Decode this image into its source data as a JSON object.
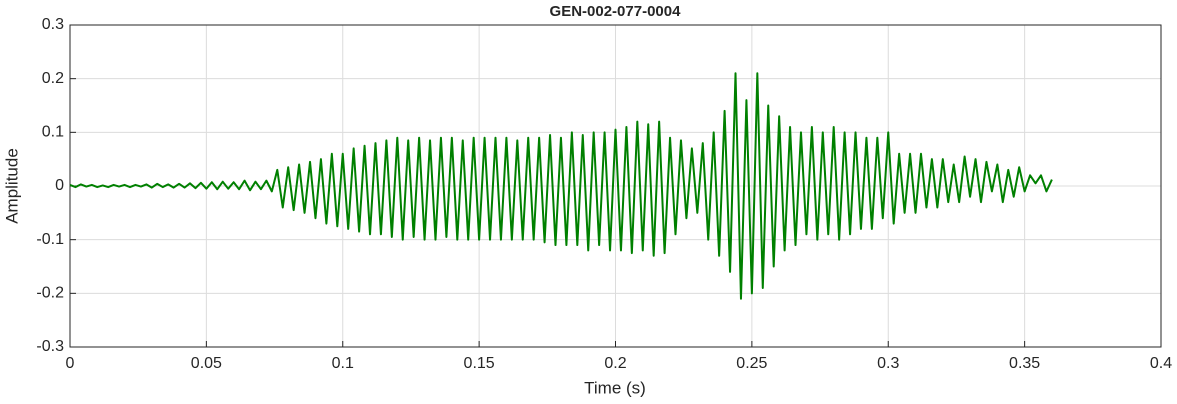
{
  "chart_data": {
    "type": "line",
    "title": "GEN-002-077-0004",
    "xlabel": "Time (s)",
    "ylabel": "Amplitude",
    "xlim": [
      0,
      0.4
    ],
    "ylim": [
      -0.3,
      0.3
    ],
    "xticks": [
      0,
      0.05,
      0.1,
      0.15,
      0.2,
      0.25,
      0.3,
      0.35,
      0.4
    ],
    "yticks": [
      -0.3,
      -0.2,
      -0.1,
      0,
      0.1,
      0.2,
      0.3
    ],
    "grid": true,
    "x": [
      0,
      0.002,
      0.004,
      0.006,
      0.008,
      0.01,
      0.012,
      0.014,
      0.016,
      0.018,
      0.02,
      0.022,
      0.024,
      0.026,
      0.028,
      0.03,
      0.032,
      0.034,
      0.036,
      0.038,
      0.04,
      0.042,
      0.044,
      0.046,
      0.048,
      0.05,
      0.052,
      0.054,
      0.056,
      0.058,
      0.06,
      0.062,
      0.064,
      0.066,
      0.068,
      0.07,
      0.072,
      0.074,
      0.076,
      0.078,
      0.08,
      0.082,
      0.084,
      0.086,
      0.088,
      0.09,
      0.092,
      0.094,
      0.096,
      0.098,
      0.1,
      0.102,
      0.104,
      0.106,
      0.108,
      0.11,
      0.112,
      0.114,
      0.116,
      0.118,
      0.12,
      0.122,
      0.124,
      0.126,
      0.128,
      0.13,
      0.132,
      0.134,
      0.136,
      0.138,
      0.14,
      0.142,
      0.144,
      0.146,
      0.148,
      0.15,
      0.152,
      0.154,
      0.156,
      0.158,
      0.16,
      0.162,
      0.164,
      0.166,
      0.168,
      0.17,
      0.172,
      0.174,
      0.176,
      0.178,
      0.18,
      0.182,
      0.184,
      0.186,
      0.188,
      0.19,
      0.192,
      0.194,
      0.196,
      0.198,
      0.2,
      0.202,
      0.204,
      0.206,
      0.208,
      0.21,
      0.212,
      0.214,
      0.216,
      0.218,
      0.22,
      0.222,
      0.224,
      0.226,
      0.228,
      0.23,
      0.232,
      0.234,
      0.236,
      0.238,
      0.24,
      0.242,
      0.244,
      0.246,
      0.248,
      0.25,
      0.252,
      0.254,
      0.256,
      0.258,
      0.26,
      0.262,
      0.264,
      0.266,
      0.268,
      0.27,
      0.272,
      0.274,
      0.276,
      0.278,
      0.28,
      0.282,
      0.284,
      0.286,
      0.288,
      0.29,
      0.292,
      0.294,
      0.296,
      0.298,
      0.3,
      0.302,
      0.304,
      0.306,
      0.308,
      0.31,
      0.312,
      0.314,
      0.316,
      0.318,
      0.32,
      0.322,
      0.324,
      0.326,
      0.328,
      0.33,
      0.332,
      0.334,
      0.336,
      0.338,
      0.34,
      0.342,
      0.344,
      0.346,
      0.348,
      0.35,
      0.352,
      0.354,
      0.356,
      0.358,
      0.36
    ],
    "series": [
      {
        "color": "#008000",
        "values": [
          0.002,
          -0.002,
          0.003,
          -0.001,
          0.002,
          -0.002,
          0.001,
          -0.002,
          0.002,
          -0.001,
          0.002,
          -0.002,
          0.002,
          -0.001,
          0.003,
          -0.003,
          0.004,
          -0.002,
          0.003,
          -0.003,
          0.004,
          -0.003,
          0.005,
          -0.004,
          0.006,
          -0.005,
          0.007,
          -0.006,
          0.008,
          -0.005,
          0.007,
          -0.006,
          0.01,
          -0.008,
          0.008,
          -0.006,
          0.01,
          -0.01,
          0.03,
          -0.04,
          0.035,
          -0.045,
          0.04,
          -0.05,
          0.045,
          -0.06,
          0.05,
          -0.07,
          0.06,
          -0.075,
          0.06,
          -0.08,
          0.07,
          -0.085,
          0.075,
          -0.09,
          0.08,
          -0.09,
          0.085,
          -0.095,
          0.09,
          -0.1,
          0.085,
          -0.095,
          0.09,
          -0.1,
          0.085,
          -0.1,
          0.09,
          -0.095,
          0.09,
          -0.1,
          0.085,
          -0.1,
          0.09,
          -0.1,
          0.09,
          -0.1,
          0.09,
          -0.1,
          0.09,
          -0.1,
          0.085,
          -0.1,
          0.09,
          -0.1,
          0.09,
          -0.105,
          0.095,
          -0.11,
          0.09,
          -0.11,
          0.1,
          -0.11,
          0.095,
          -0.12,
          0.1,
          -0.11,
          0.1,
          -0.12,
          0.105,
          -0.12,
          0.11,
          -0.125,
          0.12,
          -0.12,
          0.115,
          -0.13,
          0.12,
          -0.125,
          0.09,
          -0.09,
          0.085,
          -0.06,
          0.07,
          -0.05,
          0.08,
          -0.1,
          0.1,
          -0.13,
          0.14,
          -0.16,
          0.21,
          -0.21,
          0.16,
          -0.2,
          0.21,
          -0.19,
          0.15,
          -0.15,
          0.13,
          -0.12,
          0.11,
          -0.11,
          0.1,
          -0.09,
          0.11,
          -0.1,
          0.1,
          -0.09,
          0.11,
          -0.1,
          0.1,
          -0.09,
          0.1,
          -0.08,
          0.09,
          -0.08,
          0.09,
          -0.06,
          0.1,
          -0.07,
          0.06,
          -0.05,
          0.06,
          -0.05,
          0.06,
          -0.04,
          0.05,
          -0.04,
          0.05,
          -0.03,
          0.04,
          -0.03,
          0.055,
          -0.02,
          0.05,
          -0.03,
          0.045,
          -0.01,
          0.04,
          -0.03,
          0.03,
          -0.02,
          0.035,
          -0.01,
          0.02,
          0.005,
          0.02,
          -0.01,
          0.012
        ]
      }
    ]
  }
}
